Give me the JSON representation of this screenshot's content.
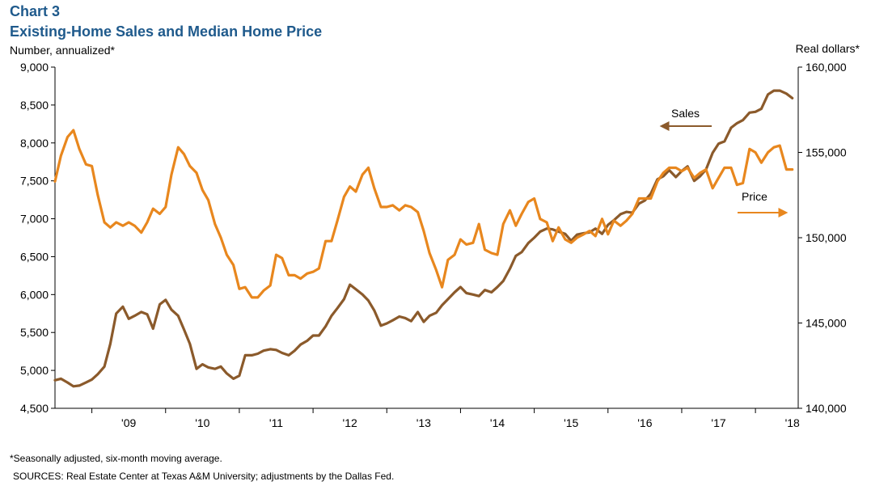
{
  "header": {
    "chart_number": "Chart 3",
    "title": "Existing-Home Sales and Median Home Price"
  },
  "footer": {
    "footnote": "*Seasonally adjusted, six-month moving average.",
    "sources": "SOURCES:  Real Estate Center at Texas A&M University;  adjustments by the Dallas Fed."
  },
  "chart_data": {
    "type": "line",
    "title": "Existing-Home Sales and Median Home Price",
    "y_left": {
      "label": "Number,  annualized*",
      "range": [
        4500,
        9000
      ],
      "ticks": [
        4500,
        5000,
        5500,
        6000,
        6500,
        7000,
        7500,
        8000,
        8500,
        9000
      ],
      "tick_labels": [
        "4,500",
        "5,000",
        "5,500",
        "6,000",
        "6,500",
        "7,000",
        "7,500",
        "8,000",
        "8,500",
        "9,000"
      ]
    },
    "y_right": {
      "label": "Real dollars*",
      "range": [
        140000,
        160000
      ],
      "ticks": [
        140000,
        145000,
        150000,
        155000,
        160000
      ],
      "tick_labels": [
        "140,000",
        "145,000",
        "150,000",
        "155,000",
        "160,000"
      ]
    },
    "x_axis": {
      "start": 2008.5,
      "end": 2018.58,
      "year_labels": [
        "'09",
        "'10",
        "'11",
        "'12",
        "'13",
        "'14",
        "'15",
        "'16",
        "'17",
        "'18"
      ]
    },
    "grid": false,
    "series": [
      {
        "name": "Sales",
        "axis": "left",
        "color": "#8b5a2b",
        "arrow": "left",
        "x": [
          2008.5,
          2008.58,
          2008.67,
          2008.75,
          2008.83,
          2008.92,
          2009.0,
          2009.08,
          2009.17,
          2009.25,
          2009.33,
          2009.42,
          2009.5,
          2009.58,
          2009.67,
          2009.75,
          2009.83,
          2009.92,
          2010.0,
          2010.08,
          2010.17,
          2010.25,
          2010.33,
          2010.42,
          2010.5,
          2010.58,
          2010.67,
          2010.75,
          2010.83,
          2010.92,
          2011.0,
          2011.08,
          2011.17,
          2011.25,
          2011.33,
          2011.42,
          2011.5,
          2011.58,
          2011.67,
          2011.75,
          2011.83,
          2011.92,
          2012.0,
          2012.08,
          2012.17,
          2012.25,
          2012.33,
          2012.42,
          2012.5,
          2012.58,
          2012.67,
          2012.75,
          2012.83,
          2012.92,
          2013.0,
          2013.08,
          2013.17,
          2013.25,
          2013.33,
          2013.42,
          2013.5,
          2013.58,
          2013.67,
          2013.75,
          2013.83,
          2013.92,
          2014.0,
          2014.08,
          2014.17,
          2014.25,
          2014.33,
          2014.42,
          2014.5,
          2014.58,
          2014.67,
          2014.75,
          2014.83,
          2014.92,
          2015.0,
          2015.08,
          2015.17,
          2015.25,
          2015.33,
          2015.42,
          2015.5,
          2015.58,
          2015.67,
          2015.75,
          2015.83,
          2015.92,
          2016.0,
          2016.08,
          2016.17,
          2016.25,
          2016.33,
          2016.42,
          2016.5,
          2016.58,
          2016.67,
          2016.75,
          2016.83,
          2016.92,
          2017.0,
          2017.08,
          2017.17,
          2017.25,
          2017.33,
          2017.42,
          2017.5,
          2017.58,
          2017.67,
          2017.75,
          2017.83,
          2017.92,
          2018.0,
          2018.08,
          2018.17,
          2018.25,
          2018.33,
          2018.42,
          2018.5
        ],
        "values": [
          4870,
          4890,
          4840,
          4790,
          4800,
          4840,
          4880,
          4950,
          5050,
          5350,
          5750,
          5840,
          5680,
          5720,
          5770,
          5740,
          5550,
          5870,
          5930,
          5800,
          5720,
          5540,
          5350,
          5020,
          5080,
          5040,
          5020,
          5050,
          4960,
          4890,
          4930,
          5200,
          5200,
          5220,
          5260,
          5280,
          5270,
          5230,
          5200,
          5260,
          5340,
          5390,
          5460,
          5460,
          5580,
          5720,
          5820,
          5940,
          6130,
          6070,
          6000,
          5920,
          5790,
          5590,
          5620,
          5660,
          5710,
          5690,
          5650,
          5770,
          5640,
          5720,
          5760,
          5860,
          5940,
          6030,
          6100,
          6020,
          6000,
          5980,
          6060,
          6030,
          6100,
          6180,
          6340,
          6510,
          6560,
          6680,
          6750,
          6830,
          6870,
          6860,
          6830,
          6800,
          6710,
          6790,
          6810,
          6820,
          6870,
          6800,
          6920,
          6980,
          7060,
          7090,
          7080,
          7200,
          7240,
          7330,
          7520,
          7560,
          7640,
          7550,
          7630,
          7690,
          7500,
          7560,
          7650,
          7870,
          7990,
          8020,
          8200,
          8260,
          8300,
          8400,
          8410,
          8450,
          8640,
          8690,
          8690,
          8650,
          8590
        ]
      },
      {
        "name": "Price",
        "axis": "right",
        "color": "#e8871e",
        "arrow": "right",
        "x": [
          2008.5,
          2008.58,
          2008.67,
          2008.75,
          2008.83,
          2008.92,
          2009.0,
          2009.08,
          2009.17,
          2009.25,
          2009.33,
          2009.42,
          2009.5,
          2009.58,
          2009.67,
          2009.75,
          2009.83,
          2009.92,
          2010.0,
          2010.08,
          2010.17,
          2010.25,
          2010.33,
          2010.42,
          2010.5,
          2010.58,
          2010.67,
          2010.75,
          2010.83,
          2010.92,
          2011.0,
          2011.08,
          2011.17,
          2011.25,
          2011.33,
          2011.42,
          2011.5,
          2011.58,
          2011.67,
          2011.75,
          2011.83,
          2011.92,
          2012.0,
          2012.08,
          2012.17,
          2012.25,
          2012.33,
          2012.42,
          2012.5,
          2012.58,
          2012.67,
          2012.75,
          2012.83,
          2012.92,
          2013.0,
          2013.08,
          2013.17,
          2013.25,
          2013.33,
          2013.42,
          2013.5,
          2013.58,
          2013.67,
          2013.75,
          2013.83,
          2013.92,
          2014.0,
          2014.08,
          2014.17,
          2014.25,
          2014.33,
          2014.42,
          2014.5,
          2014.58,
          2014.67,
          2014.75,
          2014.83,
          2014.92,
          2015.0,
          2015.08,
          2015.17,
          2015.25,
          2015.33,
          2015.42,
          2015.5,
          2015.58,
          2015.67,
          2015.75,
          2015.83,
          2015.92,
          2016.0,
          2016.08,
          2016.17,
          2016.25,
          2016.33,
          2016.42,
          2016.5,
          2016.58,
          2016.67,
          2016.75,
          2016.83,
          2016.92,
          2017.0,
          2017.08,
          2017.17,
          2017.25,
          2017.33,
          2017.42,
          2017.5,
          2017.58,
          2017.67,
          2017.75,
          2017.83,
          2017.92,
          2018.0,
          2018.08,
          2018.17,
          2018.25,
          2018.33,
          2018.42,
          2018.5
        ],
        "values": [
          153300,
          154800,
          155900,
          156300,
          155200,
          154300,
          154200,
          152500,
          150900,
          150600,
          150900,
          150700,
          150900,
          150700,
          150300,
          150900,
          151700,
          151400,
          151800,
          153700,
          155300,
          154900,
          154200,
          153800,
          152800,
          152200,
          150800,
          150000,
          149000,
          148400,
          147000,
          147100,
          146500,
          146500,
          146900,
          147200,
          149000,
          148800,
          147800,
          147800,
          147600,
          147900,
          148000,
          148200,
          149800,
          149800,
          151000,
          152400,
          153000,
          152700,
          153700,
          154100,
          152900,
          151800,
          151800,
          151900,
          151600,
          151900,
          151800,
          151500,
          150400,
          149100,
          148100,
          147100,
          148700,
          149000,
          149900,
          149600,
          149700,
          150800,
          149300,
          149100,
          149000,
          150800,
          151600,
          150700,
          151400,
          152100,
          152300,
          151100,
          150900,
          149800,
          150600,
          149900,
          149700,
          150000,
          150200,
          150400,
          150100,
          151100,
          150200,
          151000,
          150700,
          151000,
          151400,
          152300,
          152300,
          152300,
          153300,
          153800,
          154100,
          154100,
          153900,
          154100,
          153500,
          153800,
          154000,
          152900,
          153500,
          154100,
          154100,
          153100,
          153200,
          155200,
          155000,
          154400,
          155000,
          155300,
          155400,
          154000,
          154000
        ]
      }
    ],
    "annotations": [
      {
        "text": "Sales",
        "series": "Sales"
      },
      {
        "text": "Price",
        "series": "Price"
      }
    ]
  }
}
